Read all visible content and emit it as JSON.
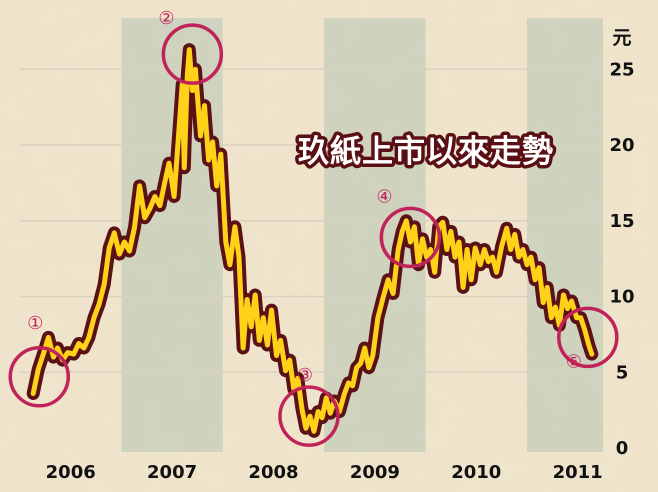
{
  "chart_data": {
    "type": "line",
    "title": "玖紙上市以來走勢",
    "ylabel": "元",
    "ylim": [
      0,
      27
    ],
    "yticks": [
      0,
      5,
      10,
      15,
      20,
      25
    ],
    "xlim": [
      2005.5,
      2011.25
    ],
    "xticks": [
      {
        "label": "2006",
        "x": 2006.0
      },
      {
        "label": "2007",
        "x": 2007.0
      },
      {
        "label": "2008",
        "x": 2008.0
      },
      {
        "label": "2009",
        "x": 2009.0
      },
      {
        "label": "2010",
        "x": 2010.0
      },
      {
        "label": "2011",
        "x": 2011.0
      }
    ],
    "grid": true,
    "colors": {
      "line": "#ffd21a",
      "outline": "#5b1216",
      "marker": "#c0235a",
      "band": "#c9d0bc",
      "background": "#efe3c8"
    },
    "series": [
      {
        "values": [
          [
            2005.63,
            3.6
          ],
          [
            2005.68,
            5.2
          ],
          [
            2005.73,
            6.2
          ],
          [
            2005.78,
            7.3
          ],
          [
            2005.83,
            6.0
          ],
          [
            2005.87,
            6.6
          ],
          [
            2005.92,
            5.8
          ],
          [
            2005.97,
            6.3
          ],
          [
            2006.03,
            6.2
          ],
          [
            2006.08,
            6.9
          ],
          [
            2006.13,
            6.6
          ],
          [
            2006.18,
            7.3
          ],
          [
            2006.23,
            8.6
          ],
          [
            2006.28,
            9.5
          ],
          [
            2006.33,
            10.8
          ],
          [
            2006.38,
            13.2
          ],
          [
            2006.43,
            14.2
          ],
          [
            2006.48,
            12.8
          ],
          [
            2006.53,
            13.6
          ],
          [
            2006.58,
            13.0
          ],
          [
            2006.63,
            14.6
          ],
          [
            2006.68,
            17.3
          ],
          [
            2006.73,
            15.2
          ],
          [
            2006.78,
            15.8
          ],
          [
            2006.83,
            16.6
          ],
          [
            2006.88,
            16.0
          ],
          [
            2006.93,
            17.6
          ],
          [
            2006.97,
            18.8
          ],
          [
            2007.02,
            16.6
          ],
          [
            2007.07,
            21.2
          ],
          [
            2007.1,
            24.0
          ],
          [
            2007.12,
            18.5
          ],
          [
            2007.15,
            24.6
          ],
          [
            2007.17,
            26.3
          ],
          [
            2007.2,
            23.6
          ],
          [
            2007.23,
            25.0
          ],
          [
            2007.28,
            20.6
          ],
          [
            2007.32,
            22.6
          ],
          [
            2007.36,
            19.0
          ],
          [
            2007.4,
            20.2
          ],
          [
            2007.44,
            17.3
          ],
          [
            2007.48,
            19.4
          ],
          [
            2007.53,
            13.6
          ],
          [
            2007.57,
            12.1
          ],
          [
            2007.62,
            14.6
          ],
          [
            2007.66,
            12.6
          ],
          [
            2007.7,
            6.6
          ],
          [
            2007.74,
            9.8
          ],
          [
            2007.78,
            8.0
          ],
          [
            2007.82,
            10.1
          ],
          [
            2007.86,
            7.1
          ],
          [
            2007.9,
            8.6
          ],
          [
            2007.94,
            6.8
          ],
          [
            2007.98,
            9.1
          ],
          [
            2008.03,
            6.1
          ],
          [
            2008.07,
            7.1
          ],
          [
            2008.12,
            5.1
          ],
          [
            2008.16,
            5.8
          ],
          [
            2008.2,
            3.9
          ],
          [
            2008.24,
            4.6
          ],
          [
            2008.28,
            2.6
          ],
          [
            2008.32,
            1.3
          ],
          [
            2008.36,
            2.1
          ],
          [
            2008.4,
            1.1
          ],
          [
            2008.44,
            2.4
          ],
          [
            2008.48,
            2.0
          ],
          [
            2008.52,
            3.3
          ],
          [
            2008.56,
            2.3
          ],
          [
            2008.6,
            3.1
          ],
          [
            2008.65,
            2.4
          ],
          [
            2008.7,
            3.6
          ],
          [
            2008.74,
            4.3
          ],
          [
            2008.78,
            4.1
          ],
          [
            2008.82,
            5.3
          ],
          [
            2008.86,
            5.6
          ],
          [
            2008.9,
            6.6
          ],
          [
            2008.94,
            5.3
          ],
          [
            2008.98,
            6.1
          ],
          [
            2009.03,
            8.6
          ],
          [
            2009.08,
            9.9
          ],
          [
            2009.13,
            11.1
          ],
          [
            2009.18,
            10.2
          ],
          [
            2009.23,
            13.1
          ],
          [
            2009.27,
            14.3
          ],
          [
            2009.31,
            15.0
          ],
          [
            2009.35,
            13.6
          ],
          [
            2009.39,
            14.6
          ],
          [
            2009.43,
            12.1
          ],
          [
            2009.47,
            13.8
          ],
          [
            2009.51,
            12.6
          ],
          [
            2009.55,
            13.1
          ],
          [
            2009.59,
            11.6
          ],
          [
            2009.63,
            14.6
          ],
          [
            2009.67,
            14.9
          ],
          [
            2009.71,
            13.1
          ],
          [
            2009.75,
            14.3
          ],
          [
            2009.79,
            12.6
          ],
          [
            2009.83,
            13.6
          ],
          [
            2009.87,
            10.6
          ],
          [
            2009.91,
            13.1
          ],
          [
            2009.95,
            11.1
          ],
          [
            2009.99,
            13.2
          ],
          [
            2010.04,
            12.1
          ],
          [
            2010.08,
            13.1
          ],
          [
            2010.12,
            12.3
          ],
          [
            2010.16,
            12.6
          ],
          [
            2010.2,
            11.6
          ],
          [
            2010.25,
            13.3
          ],
          [
            2010.3,
            14.5
          ],
          [
            2010.34,
            13.1
          ],
          [
            2010.38,
            14.1
          ],
          [
            2010.42,
            12.6
          ],
          [
            2010.46,
            13.1
          ],
          [
            2010.5,
            12.1
          ],
          [
            2010.54,
            12.6
          ],
          [
            2010.58,
            11.1
          ],
          [
            2010.62,
            11.9
          ],
          [
            2010.66,
            9.6
          ],
          [
            2010.7,
            10.6
          ],
          [
            2010.74,
            8.6
          ],
          [
            2010.78,
            9.3
          ],
          [
            2010.82,
            8.1
          ],
          [
            2010.86,
            10.1
          ],
          [
            2010.9,
            9.2
          ],
          [
            2010.94,
            9.7
          ],
          [
            2010.99,
            8.6
          ],
          [
            2011.03,
            8.6
          ],
          [
            2011.07,
            7.8
          ],
          [
            2011.11,
            6.8
          ],
          [
            2011.14,
            6.2
          ]
        ]
      }
    ],
    "markers": [
      {
        "label": "①",
        "x": 2005.69,
        "y": 4.7
      },
      {
        "label": "②",
        "x": 2007.2,
        "y": 26.0
      },
      {
        "label": "③",
        "x": 2008.35,
        "y": 2.1
      },
      {
        "label": "④",
        "x": 2009.35,
        "y": 13.9
      },
      {
        "label": "⑤",
        "x": 2011.1,
        "y": 7.3
      }
    ]
  }
}
